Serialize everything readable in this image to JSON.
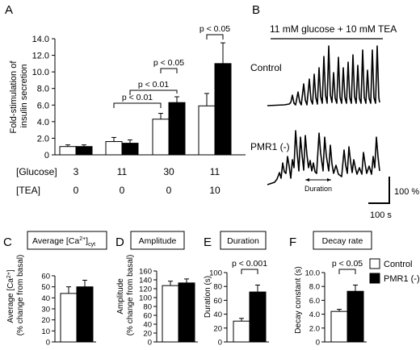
{
  "panel_letters": [
    "A",
    "B",
    "C",
    "D",
    "E",
    "F"
  ],
  "panel_b": {
    "header": "11 mM glucose + 10 mM TEA",
    "label_control": "Control",
    "label_pmr1": "PMR1 (-)",
    "duration_label": "Duration",
    "scale_y": "100 %",
    "scale_x": "100 s"
  },
  "legend": {
    "control": "Control",
    "pmr1": "PMR1 (-)"
  },
  "chart_data": [
    {
      "panel": "A",
      "type": "bar",
      "ylabel": "Fold-stimulation of insulin secretion",
      "ylim": [
        0,
        14
      ],
      "yticks": [
        "0",
        "2.0",
        "4.0",
        "6.0",
        "8.0",
        "10.0",
        "12.0",
        "14.0"
      ],
      "row_labels": [
        "[Glucose]",
        "[TEA]"
      ],
      "categories": [
        {
          "glucose": "3",
          "tea": "0"
        },
        {
          "glucose": "11",
          "tea": "0"
        },
        {
          "glucose": "30",
          "tea": "0"
        },
        {
          "glucose": "11",
          "tea": "10"
        }
      ],
      "series": [
        {
          "name": "Control",
          "color": "#ffffff",
          "values": [
            1.0,
            1.6,
            4.3,
            5.9
          ],
          "errors": [
            0.2,
            0.5,
            0.7,
            1.5
          ]
        },
        {
          "name": "PMR1 (-)",
          "color": "#000000",
          "values": [
            1.0,
            1.4,
            6.3,
            11.0
          ],
          "errors": [
            0.2,
            0.4,
            0.7,
            2.5
          ]
        }
      ],
      "annotations": [
        {
          "text": "p < 0.01",
          "from": [
            1,
            0
          ],
          "to": [
            2,
            0
          ]
        },
        {
          "text": "p < 0.01",
          "from": [
            1,
            1
          ],
          "to": [
            2,
            1
          ]
        },
        {
          "text": "p < 0.05",
          "from": [
            2,
            0
          ],
          "to": [
            2,
            1
          ]
        },
        {
          "text": "p < 0.05",
          "from": [
            3,
            0
          ],
          "to": [
            3,
            1
          ]
        }
      ]
    },
    {
      "panel": "C",
      "type": "bar",
      "title": "Average [Ca2+]cyt",
      "ylabel": "Average [Ca2+] (% change from basal)",
      "ylim": [
        0,
        60
      ],
      "yticks": [
        "0",
        "10",
        "20",
        "30",
        "40",
        "50",
        "60"
      ],
      "series": [
        {
          "name": "Control",
          "color": "#ffffff",
          "values": [
            44
          ],
          "errors": [
            6
          ]
        },
        {
          "name": "PMR1 (-)",
          "color": "#000000",
          "values": [
            50
          ],
          "errors": [
            6
          ]
        }
      ]
    },
    {
      "panel": "D",
      "type": "bar",
      "title": "Amplitude",
      "ylabel": "Amplitude (% change from basal)",
      "ylim": [
        0,
        160
      ],
      "yticks": [
        "0",
        "20",
        "40",
        "60",
        "80",
        "100",
        "120",
        "140",
        "160"
      ],
      "series": [
        {
          "name": "Control",
          "color": "#ffffff",
          "values": [
            127
          ],
          "errors": [
            10
          ]
        },
        {
          "name": "PMR1 (-)",
          "color": "#000000",
          "values": [
            133
          ],
          "errors": [
            9
          ]
        }
      ]
    },
    {
      "panel": "E",
      "type": "bar",
      "title": "Duration",
      "ylabel": "Duration (s)",
      "ylim": [
        0,
        100
      ],
      "yticks": [
        "0",
        "20",
        "40",
        "60",
        "80",
        "100"
      ],
      "annotation": "p < 0.001",
      "series": [
        {
          "name": "Control",
          "color": "#ffffff",
          "values": [
            30
          ],
          "errors": [
            4
          ]
        },
        {
          "name": "PMR1 (-)",
          "color": "#000000",
          "values": [
            72
          ],
          "errors": [
            10
          ]
        }
      ]
    },
    {
      "panel": "F",
      "type": "bar",
      "title": "Decay rate",
      "ylabel": "Decay constant (s)",
      "ylim": [
        0,
        10
      ],
      "yticks": [
        "0",
        "2.0",
        "4.0",
        "6.0",
        "8.0",
        "10.0"
      ],
      "annotation": "p < 0.05",
      "series": [
        {
          "name": "Control",
          "color": "#ffffff",
          "values": [
            4.4
          ],
          "errors": [
            0.3
          ]
        },
        {
          "name": "PMR1 (-)",
          "color": "#000000",
          "values": [
            7.3
          ],
          "errors": [
            0.9
          ]
        }
      ]
    }
  ]
}
